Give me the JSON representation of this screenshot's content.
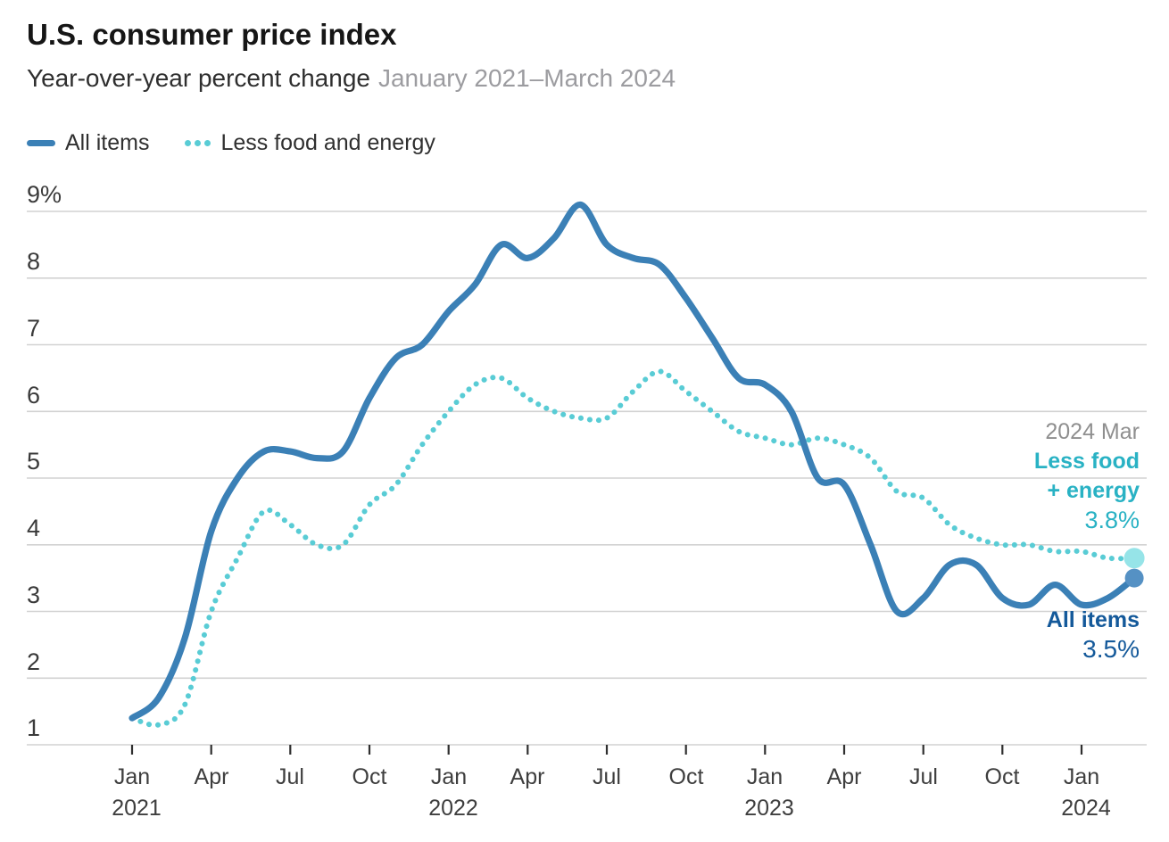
{
  "chart_data": {
    "type": "line",
    "title": "U.S. consumer price index",
    "subtitle": "Year-over-year percent change",
    "date_range": "January 2021–March 2024",
    "x_start": "2021-01",
    "x_end": "2024-03",
    "x_interval": "monthly",
    "ylim": [
      1,
      9
    ],
    "y_tick_step": 1,
    "grid": true,
    "legend_position": "top-left",
    "y_tick_labels": [
      "9%",
      "8",
      "7",
      "6",
      "5",
      "4",
      "3",
      "2",
      "1"
    ],
    "x_ticks": [
      {
        "i": 0,
        "month": "Jan",
        "year": "2021"
      },
      {
        "i": 3,
        "month": "Apr"
      },
      {
        "i": 6,
        "month": "Jul"
      },
      {
        "i": 9,
        "month": "Oct"
      },
      {
        "i": 12,
        "month": "Jan",
        "year": "2022"
      },
      {
        "i": 15,
        "month": "Apr"
      },
      {
        "i": 18,
        "month": "Jul"
      },
      {
        "i": 21,
        "month": "Oct"
      },
      {
        "i": 24,
        "month": "Jan",
        "year": "2023"
      },
      {
        "i": 27,
        "month": "Apr"
      },
      {
        "i": 30,
        "month": "Jul"
      },
      {
        "i": 33,
        "month": "Oct"
      },
      {
        "i": 36,
        "month": "Jan",
        "year": "2024"
      }
    ],
    "series": [
      {
        "name": "All items",
        "key": "all-items",
        "style": "solid",
        "color": "#3b80b6",
        "end_dot_color": "#5591c4",
        "end_dot_radius": 10.5,
        "values": [
          1.4,
          1.7,
          2.6,
          4.2,
          5.0,
          5.4,
          5.4,
          5.3,
          5.4,
          6.2,
          6.8,
          7.0,
          7.5,
          7.9,
          8.5,
          8.3,
          8.6,
          9.1,
          8.5,
          8.3,
          8.2,
          7.7,
          7.1,
          6.5,
          6.4,
          6.0,
          5.0,
          4.9,
          4.0,
          3.0,
          3.2,
          3.7,
          3.7,
          3.2,
          3.1,
          3.4,
          3.1,
          3.2,
          3.5
        ]
      },
      {
        "name": "Less food and energy",
        "key": "less-food-and-energy",
        "style": "dotted",
        "color": "#59ccd5",
        "end_dot_color": "#96e4e8",
        "end_dot_radius": 11.5,
        "values": [
          1.4,
          1.3,
          1.6,
          3.0,
          3.8,
          4.5,
          4.3,
          4.0,
          4.0,
          4.6,
          4.9,
          5.5,
          6.0,
          6.4,
          6.5,
          6.2,
          6.0,
          5.9,
          5.9,
          6.3,
          6.6,
          6.3,
          6.0,
          5.7,
          5.6,
          5.5,
          5.6,
          5.5,
          5.3,
          4.8,
          4.7,
          4.3,
          4.1,
          4.0,
          4.0,
          3.9,
          3.9,
          3.8,
          3.8
        ]
      }
    ],
    "colors": {
      "grid": "#d2d2d2",
      "tick": "#2f2f2f"
    },
    "annotation": {
      "date_label": "2024 Mar",
      "core_label_line1": "Less food",
      "core_label_line2": "+ energy",
      "core_value": "3.8%",
      "all_label": "All items",
      "all_value": "3.5%"
    }
  }
}
